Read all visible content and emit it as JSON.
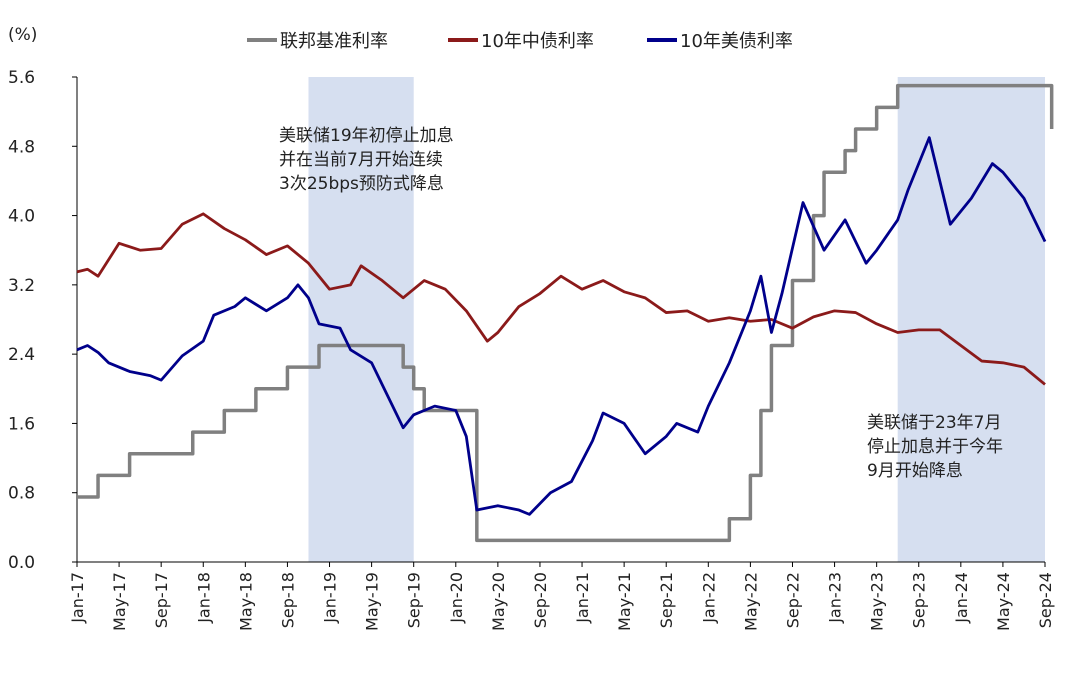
{
  "chart_data": {
    "type": "line",
    "ylabel": "(%)",
    "ylim": [
      0,
      5.6
    ],
    "yticks": [
      "0.0",
      "0.8",
      "1.6",
      "2.4",
      "3.2",
      "4.0",
      "4.8",
      "5.6"
    ],
    "x_range": [
      "2017-01",
      "2024-09"
    ],
    "xticks": [
      "Jan-17",
      "May-17",
      "Sep-17",
      "Jan-18",
      "May-18",
      "Sep-18",
      "Jan-19",
      "May-19",
      "Sep-19",
      "Jan-20",
      "May-20",
      "Sep-20",
      "Jan-21",
      "May-21",
      "Sep-21",
      "Jan-22",
      "May-22",
      "Sep-22",
      "Jan-23",
      "May-23",
      "Sep-23",
      "Jan-24",
      "May-24",
      "Sep-24"
    ],
    "grid": false,
    "legend_position": "top",
    "series": [
      {
        "name": "联邦基准利率",
        "color": "#808080",
        "step": true,
        "points": [
          [
            "2017-01",
            0.75
          ],
          [
            "2017-03",
            1.0
          ],
          [
            "2017-06",
            1.25
          ],
          [
            "2017-12",
            1.5
          ],
          [
            "2018-03",
            1.75
          ],
          [
            "2018-06",
            2.0
          ],
          [
            "2018-09",
            2.25
          ],
          [
            "2018-12",
            2.5
          ],
          [
            "2019-08",
            2.25
          ],
          [
            "2019-09",
            2.0
          ],
          [
            "2019-10",
            1.75
          ],
          [
            "2020-03",
            0.25
          ],
          [
            "2022-03",
            0.5
          ],
          [
            "2022-05",
            1.0
          ],
          [
            "2022-06",
            1.75
          ],
          [
            "2022-07",
            2.5
          ],
          [
            "2022-09",
            3.25
          ],
          [
            "2022-11",
            4.0
          ],
          [
            "2022-12",
            4.5
          ],
          [
            "2023-02",
            4.75
          ],
          [
            "2023-03",
            5.0
          ],
          [
            "2023-05",
            5.25
          ],
          [
            "2023-07",
            5.5
          ],
          [
            "2024-09",
            5.5
          ],
          [
            "2024-09-20",
            5.0
          ]
        ]
      },
      {
        "name": "10年中债利率",
        "color": "#8B1A1A",
        "points": [
          [
            "2017-01",
            3.35
          ],
          [
            "2017-02",
            3.38
          ],
          [
            "2017-03",
            3.3
          ],
          [
            "2017-05",
            3.68
          ],
          [
            "2017-07",
            3.6
          ],
          [
            "2017-09",
            3.62
          ],
          [
            "2017-11",
            3.9
          ],
          [
            "2018-01",
            4.02
          ],
          [
            "2018-03",
            3.85
          ],
          [
            "2018-05",
            3.72
          ],
          [
            "2018-07",
            3.55
          ],
          [
            "2018-09",
            3.65
          ],
          [
            "2018-11",
            3.45
          ],
          [
            "2019-01",
            3.15
          ],
          [
            "2019-03",
            3.2
          ],
          [
            "2019-04",
            3.42
          ],
          [
            "2019-06",
            3.25
          ],
          [
            "2019-08",
            3.05
          ],
          [
            "2019-10",
            3.25
          ],
          [
            "2019-12",
            3.15
          ],
          [
            "2020-02",
            2.9
          ],
          [
            "2020-04",
            2.55
          ],
          [
            "2020-05",
            2.65
          ],
          [
            "2020-07",
            2.95
          ],
          [
            "2020-09",
            3.1
          ],
          [
            "2020-11",
            3.3
          ],
          [
            "2021-01",
            3.15
          ],
          [
            "2021-03",
            3.25
          ],
          [
            "2021-05",
            3.12
          ],
          [
            "2021-07",
            3.05
          ],
          [
            "2021-09",
            2.88
          ],
          [
            "2021-11",
            2.9
          ],
          [
            "2022-01",
            2.78
          ],
          [
            "2022-03",
            2.82
          ],
          [
            "2022-05",
            2.78
          ],
          [
            "2022-07",
            2.8
          ],
          [
            "2022-09",
            2.7
          ],
          [
            "2022-11",
            2.83
          ],
          [
            "2023-01",
            2.9
          ],
          [
            "2023-03",
            2.88
          ],
          [
            "2023-05",
            2.75
          ],
          [
            "2023-07",
            2.65
          ],
          [
            "2023-09",
            2.68
          ],
          [
            "2023-11",
            2.68
          ],
          [
            "2024-01",
            2.5
          ],
          [
            "2024-03",
            2.32
          ],
          [
            "2024-05",
            2.3
          ],
          [
            "2024-07",
            2.25
          ],
          [
            "2024-09",
            2.05
          ]
        ]
      },
      {
        "name": "10年美债利率",
        "color": "#00008B",
        "points": [
          [
            "2017-01",
            2.45
          ],
          [
            "2017-02",
            2.5
          ],
          [
            "2017-03",
            2.42
          ],
          [
            "2017-04",
            2.3
          ],
          [
            "2017-06",
            2.2
          ],
          [
            "2017-08",
            2.15
          ],
          [
            "2017-09",
            2.1
          ],
          [
            "2017-11",
            2.38
          ],
          [
            "2018-01",
            2.55
          ],
          [
            "2018-02",
            2.85
          ],
          [
            "2018-04",
            2.95
          ],
          [
            "2018-05",
            3.05
          ],
          [
            "2018-07",
            2.9
          ],
          [
            "2018-09",
            3.05
          ],
          [
            "2018-10",
            3.2
          ],
          [
            "2018-11",
            3.05
          ],
          [
            "2018-12",
            2.75
          ],
          [
            "2019-02",
            2.7
          ],
          [
            "2019-03",
            2.45
          ],
          [
            "2019-05",
            2.3
          ],
          [
            "2019-06",
            2.05
          ],
          [
            "2019-08",
            1.55
          ],
          [
            "2019-09",
            1.7
          ],
          [
            "2019-11",
            1.8
          ],
          [
            "2020-01",
            1.75
          ],
          [
            "2020-02",
            1.45
          ],
          [
            "2020-03",
            0.6
          ],
          [
            "2020-05",
            0.65
          ],
          [
            "2020-07",
            0.6
          ],
          [
            "2020-08",
            0.55
          ],
          [
            "2020-10",
            0.8
          ],
          [
            "2020-12",
            0.93
          ],
          [
            "2021-02",
            1.4
          ],
          [
            "2021-03",
            1.72
          ],
          [
            "2021-05",
            1.6
          ],
          [
            "2021-07",
            1.25
          ],
          [
            "2021-09",
            1.45
          ],
          [
            "2021-10",
            1.6
          ],
          [
            "2021-12",
            1.5
          ],
          [
            "2022-01",
            1.8
          ],
          [
            "2022-03",
            2.3
          ],
          [
            "2022-05",
            2.9
          ],
          [
            "2022-06",
            3.3
          ],
          [
            "2022-07",
            2.65
          ],
          [
            "2022-08",
            3.1
          ],
          [
            "2022-10",
            4.15
          ],
          [
            "2022-12",
            3.6
          ],
          [
            "2023-02",
            3.95
          ],
          [
            "2023-04",
            3.45
          ],
          [
            "2023-05",
            3.6
          ],
          [
            "2023-07",
            3.95
          ],
          [
            "2023-08",
            4.3
          ],
          [
            "2023-10",
            4.9
          ],
          [
            "2023-11",
            4.4
          ],
          [
            "2023-12",
            3.9
          ],
          [
            "2024-02",
            4.2
          ],
          [
            "2024-04",
            4.6
          ],
          [
            "2024-05",
            4.5
          ],
          [
            "2024-07",
            4.2
          ],
          [
            "2024-09",
            3.7
          ]
        ]
      }
    ],
    "shaded_periods": [
      [
        "2018-11",
        "2019-09"
      ],
      [
        "2023-07",
        "2024-09"
      ]
    ],
    "annotations": [
      {
        "lines": [
          "美联储19年初停止加息",
          "并在当前7月开始连续",
          "3次25bps预防式降息"
        ]
      },
      {
        "lines": [
          "美联储于23年7月",
          "停止加息并于今年",
          "9月开始降息"
        ]
      }
    ]
  },
  "colors": {
    "shade": "#D6DFF0",
    "axis": "#000000"
  }
}
